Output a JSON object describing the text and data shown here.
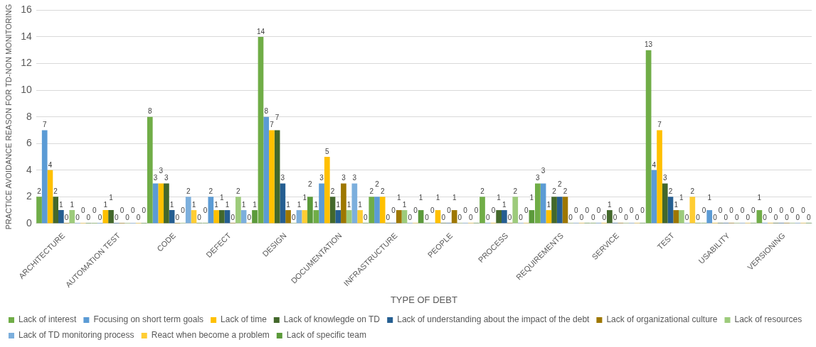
{
  "chart_data": {
    "type": "bar",
    "xlabel": "TYPE OF DEBT",
    "ylabel": "PRACTICE AVOIDANCE REASON FOR TD-NON MONITORING",
    "categories": [
      "ARCHITECTURE",
      "AUTOMATION TEST",
      "CODE",
      "DEFECT",
      "DESIGN",
      "DOCUMENTATION",
      "INFRASTRUCTURE",
      "PEOPLE",
      "PROCESS",
      "REQUIREMENTS",
      "SERVICE",
      "TEST",
      "USABILITY",
      "VERSIONING"
    ],
    "series": [
      {
        "name": "Lack of interest",
        "color": "#70ad47",
        "values": [
          2,
          0,
          8,
          0,
          14,
          1,
          2,
          0,
          2,
          3,
          0,
          13,
          0,
          1
        ]
      },
      {
        "name": "Focusing on short term goals",
        "color": "#5b9bd5",
        "values": [
          7,
          0,
          3,
          2,
          8,
          3,
          2,
          0,
          0,
          3,
          0,
          4,
          1,
          0
        ]
      },
      {
        "name": "Lack of time",
        "color": "#ffc000",
        "values": [
          4,
          1,
          3,
          1,
          7,
          5,
          2,
          1,
          0,
          1,
          0,
          7,
          0,
          0
        ]
      },
      {
        "name": "Lack of knowlegde on TD",
        "color": "#43682b",
        "values": [
          2,
          1,
          3,
          1,
          7,
          2,
          0,
          0,
          1,
          2,
          1,
          3,
          0,
          0
        ]
      },
      {
        "name": "Lack of understanding about the impact of the debt",
        "color": "#255e91",
        "values": [
          1,
          0,
          1,
          1,
          3,
          1,
          0,
          0,
          1,
          2,
          0,
          2,
          0,
          0
        ]
      },
      {
        "name": "Lack of organizational culture",
        "color": "#9e7700",
        "values": [
          0,
          0,
          0,
          0,
          1,
          3,
          1,
          1,
          0,
          2,
          0,
          1,
          0,
          0
        ]
      },
      {
        "name": "Lack of resources",
        "color": "#9dcb7b",
        "values": [
          1,
          0,
          0,
          2,
          0,
          1,
          1,
          0,
          2,
          0,
          0,
          1,
          0,
          0
        ]
      },
      {
        "name": "Lack of TD monitoring process",
        "color": "#7cafdd",
        "values": [
          0,
          0,
          2,
          1,
          1,
          3,
          0,
          0,
          0,
          0,
          0,
          0,
          0,
          0
        ]
      },
      {
        "name": "React when become a problem",
        "color": "#ffcd33",
        "values": [
          0,
          0,
          1,
          0,
          1,
          1,
          0,
          0,
          0,
          0,
          0,
          2,
          0,
          0
        ]
      },
      {
        "name": "Lack of specific team",
        "color": "#5b9a3a",
        "values": [
          0,
          0,
          0,
          1,
          2,
          0,
          1,
          0,
          1,
          0,
          0,
          0,
          0,
          0
        ]
      }
    ],
    "ylim": [
      0,
      16
    ],
    "yticks": [
      0,
      2,
      4,
      6,
      8,
      10,
      12,
      14,
      16
    ],
    "grid": "y",
    "legend": "bottom",
    "data_labels": true
  }
}
